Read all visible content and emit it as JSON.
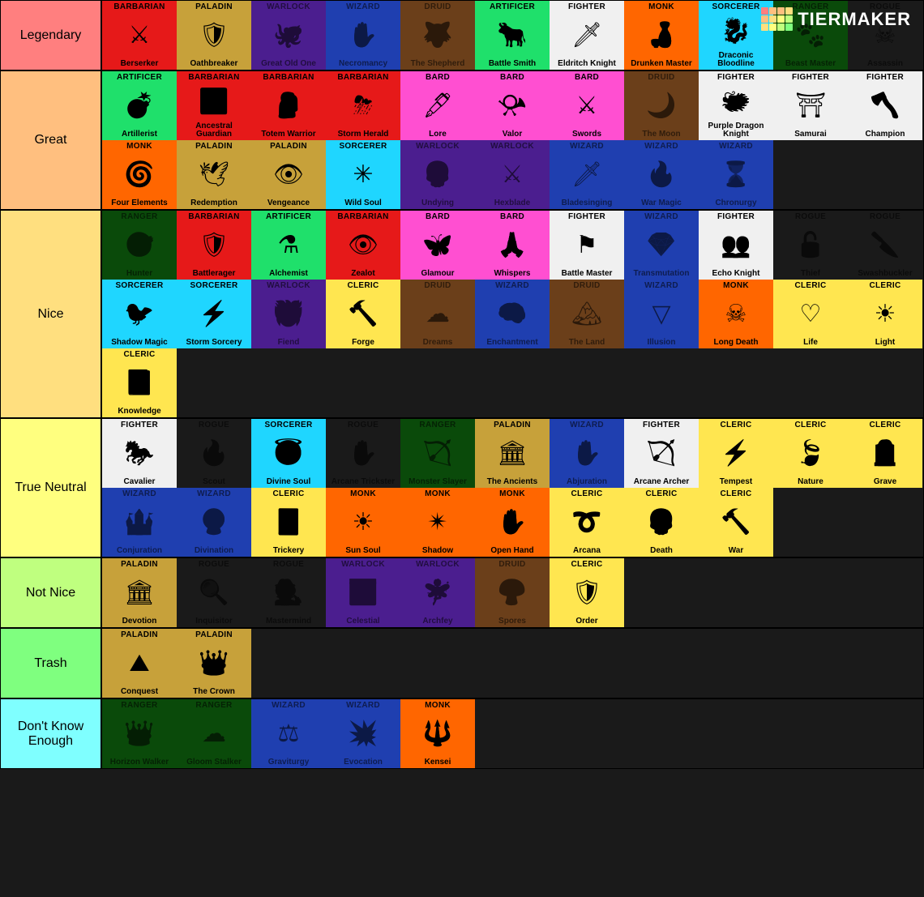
{
  "brand": "TIERMAKER",
  "logo_colors": [
    "#ff7f7f",
    "#ffbf7f",
    "#ffbf7f",
    "#ffdf7f",
    "#ffbf7f",
    "#ffdf7f",
    "#ffff7f",
    "#bfff7f",
    "#ffdf7f",
    "#ffff7f",
    "#bfff7f",
    "#7fff7f"
  ],
  "class_colors": {
    "BARBARIAN": "#e61919",
    "PALADIN": "#c7a13a",
    "WARLOCK": "#4b1e8f",
    "WIZARD": "#1f3fb0",
    "DRUID": "#6b3f1a",
    "ARTIFICER": "#1fe06b",
    "FIGHTER": "#f0f0f0",
    "MONK": "#ff6600",
    "SORCERER": "#1fd6ff",
    "RANGER": "#0a4a0a",
    "ROGUE": "#1a1a1a",
    "BARD": "#ff4fd1",
    "CLERIC": "#ffe650"
  },
  "dark_text_classes": [
    "ROGUE",
    "WARLOCK",
    "WIZARD",
    "DRUID",
    "RANGER"
  ],
  "tiers": [
    {
      "name": "Legendary",
      "color": "#ff7f7f",
      "items": [
        {
          "cls": "BARBARIAN",
          "sub": "Berserker",
          "icon": "⚔"
        },
        {
          "cls": "PALADIN",
          "sub": "Oathbreaker",
          "icon": "🛡"
        },
        {
          "cls": "WARLOCK",
          "sub": "Great Old One",
          "icon": "🐙"
        },
        {
          "cls": "WIZARD",
          "sub": "Necromancy",
          "icon": "✋"
        },
        {
          "cls": "DRUID",
          "sub": "The Shepherd",
          "icon": "🐺"
        },
        {
          "cls": "ARTIFICER",
          "sub": "Battle Smith",
          "icon": "🐂"
        },
        {
          "cls": "FIGHTER",
          "sub": "Eldritch Knight",
          "icon": "🗡"
        },
        {
          "cls": "MONK",
          "sub": "Drunken Master",
          "icon": "🍶"
        },
        {
          "cls": "SORCERER",
          "sub": "Draconic Bloodline",
          "icon": "🐉"
        },
        {
          "cls": "RANGER",
          "sub": "Beast Master",
          "icon": "🐾"
        },
        {
          "cls": "ROGUE",
          "sub": "Assassin",
          "icon": "☠"
        }
      ]
    },
    {
      "name": "Great",
      "color": "#ffbf7f",
      "items": [
        {
          "cls": "ARTIFICER",
          "sub": "Artillerist",
          "icon": "💣"
        },
        {
          "cls": "BARBARIAN",
          "sub": "Ancestral Guardian",
          "icon": "👪"
        },
        {
          "cls": "BARBARIAN",
          "sub": "Totem Warrior",
          "icon": "🗿"
        },
        {
          "cls": "BARBARIAN",
          "sub": "Storm Herald",
          "icon": "⛈"
        },
        {
          "cls": "BARD",
          "sub": "Lore",
          "icon": "🖋"
        },
        {
          "cls": "BARD",
          "sub": "Valor",
          "icon": "📯"
        },
        {
          "cls": "BARD",
          "sub": "Swords",
          "icon": "⚔"
        },
        {
          "cls": "DRUID",
          "sub": "The Moon",
          "icon": "🌙"
        },
        {
          "cls": "FIGHTER",
          "sub": "Purple Dragon Knight",
          "icon": "🐲"
        },
        {
          "cls": "FIGHTER",
          "sub": "Samurai",
          "icon": "⛩"
        },
        {
          "cls": "FIGHTER",
          "sub": "Champion",
          "icon": "🪓"
        },
        {
          "cls": "MONK",
          "sub": "Four Elements",
          "icon": "🌀"
        },
        {
          "cls": "PALADIN",
          "sub": "Redemption",
          "icon": "🕊"
        },
        {
          "cls": "PALADIN",
          "sub": "Vengeance",
          "icon": "👁"
        },
        {
          "cls": "SORCERER",
          "sub": "Wild Soul",
          "icon": "✳"
        },
        {
          "cls": "WARLOCK",
          "sub": "Undying",
          "icon": "💀"
        },
        {
          "cls": "WARLOCK",
          "sub": "Hexblade",
          "icon": "⚔"
        },
        {
          "cls": "WIZARD",
          "sub": "Bladesinging",
          "icon": "🗡"
        },
        {
          "cls": "WIZARD",
          "sub": "War Magic",
          "icon": "🔥"
        },
        {
          "cls": "WIZARD",
          "sub": "Chronurgy",
          "icon": "⌛"
        }
      ]
    },
    {
      "name": "Nice",
      "color": "#ffdf7f",
      "items": [
        {
          "cls": "RANGER",
          "sub": "Hunter",
          "icon": "🎯"
        },
        {
          "cls": "BARBARIAN",
          "sub": "Battlerager",
          "icon": "🛡"
        },
        {
          "cls": "ARTIFICER",
          "sub": "Alchemist",
          "icon": "⚗"
        },
        {
          "cls": "BARBARIAN",
          "sub": "Zealot",
          "icon": "👁"
        },
        {
          "cls": "BARD",
          "sub": "Glamour",
          "icon": "🦋"
        },
        {
          "cls": "BARD",
          "sub": "Whispers",
          "icon": "🙏"
        },
        {
          "cls": "FIGHTER",
          "sub": "Battle Master",
          "icon": "⚑"
        },
        {
          "cls": "WIZARD",
          "sub": "Transmutation",
          "icon": "💎"
        },
        {
          "cls": "FIGHTER",
          "sub": "Echo Knight",
          "icon": "👥"
        },
        {
          "cls": "ROGUE",
          "sub": "Thief",
          "icon": "🔓"
        },
        {
          "cls": "ROGUE",
          "sub": "Swashbuckler",
          "icon": "🔪"
        },
        {
          "cls": "SORCERER",
          "sub": "Shadow Magic",
          "icon": "🐦"
        },
        {
          "cls": "SORCERER",
          "sub": "Storm Sorcery",
          "icon": "⚡"
        },
        {
          "cls": "WARLOCK",
          "sub": "Fiend",
          "icon": "👹"
        },
        {
          "cls": "CLERIC",
          "sub": "Forge",
          "icon": "🔨"
        },
        {
          "cls": "DRUID",
          "sub": "Dreams",
          "icon": "☁"
        },
        {
          "cls": "WIZARD",
          "sub": "Enchantment",
          "icon": "🧠"
        },
        {
          "cls": "DRUID",
          "sub": "The Land",
          "icon": "🏔"
        },
        {
          "cls": "WIZARD",
          "sub": "Illusion",
          "icon": "▽"
        },
        {
          "cls": "MONK",
          "sub": "Long Death",
          "icon": "☠"
        },
        {
          "cls": "CLERIC",
          "sub": "Life",
          "icon": "♡"
        },
        {
          "cls": "CLERIC",
          "sub": "Light",
          "icon": "☀"
        },
        {
          "cls": "CLERIC",
          "sub": "Knowledge",
          "icon": "📕"
        }
      ]
    },
    {
      "name": "True Neutral",
      "color": "#ffff7f",
      "items": [
        {
          "cls": "FIGHTER",
          "sub": "Cavalier",
          "icon": "🐎"
        },
        {
          "cls": "ROGUE",
          "sub": "Scout",
          "icon": "🔥"
        },
        {
          "cls": "SORCERER",
          "sub": "Divine Soul",
          "icon": "😇"
        },
        {
          "cls": "ROGUE",
          "sub": "Arcane Trickster",
          "icon": "✋"
        },
        {
          "cls": "RANGER",
          "sub": "Monster Slayer",
          "icon": "🏹"
        },
        {
          "cls": "PALADIN",
          "sub": "The Ancients",
          "icon": "🏛"
        },
        {
          "cls": "WIZARD",
          "sub": "Abjuration",
          "icon": "✋"
        },
        {
          "cls": "FIGHTER",
          "sub": "Arcane Archer",
          "icon": "🏹"
        },
        {
          "cls": "CLERIC",
          "sub": "Tempest",
          "icon": "⚡"
        },
        {
          "cls": "CLERIC",
          "sub": "Nature",
          "icon": "🍃"
        },
        {
          "cls": "CLERIC",
          "sub": "Grave",
          "icon": "🪦"
        },
        {
          "cls": "WIZARD",
          "sub": "Conjuration",
          "icon": "🏰"
        },
        {
          "cls": "WIZARD",
          "sub": "Divination",
          "icon": "🔮"
        },
        {
          "cls": "CLERIC",
          "sub": "Trickery",
          "icon": "🃏"
        },
        {
          "cls": "MONK",
          "sub": "Sun Soul",
          "icon": "☀"
        },
        {
          "cls": "MONK",
          "sub": "Shadow",
          "icon": "✴"
        },
        {
          "cls": "MONK",
          "sub": "Open Hand",
          "icon": "✋"
        },
        {
          "cls": "CLERIC",
          "sub": "Arcana",
          "icon": "➰"
        },
        {
          "cls": "CLERIC",
          "sub": "Death",
          "icon": "💀"
        },
        {
          "cls": "CLERIC",
          "sub": "War",
          "icon": "🔨"
        }
      ]
    },
    {
      "name": "Not Nice",
      "color": "#bfff7f",
      "items": [
        {
          "cls": "PALADIN",
          "sub": "Devotion",
          "icon": "🏛"
        },
        {
          "cls": "ROGUE",
          "sub": "Inquisitor",
          "icon": "🔍"
        },
        {
          "cls": "ROGUE",
          "sub": "Mastermind",
          "icon": "🕵"
        },
        {
          "cls": "WARLOCK",
          "sub": "Celestial",
          "icon": "🎹"
        },
        {
          "cls": "WARLOCK",
          "sub": "Archfey",
          "icon": "🧚"
        },
        {
          "cls": "DRUID",
          "sub": "Spores",
          "icon": "🍄"
        },
        {
          "cls": "CLERIC",
          "sub": "Order",
          "icon": "🛡"
        }
      ]
    },
    {
      "name": "Trash",
      "color": "#7fff7f",
      "items": [
        {
          "cls": "PALADIN",
          "sub": "Conquest",
          "icon": "⛰"
        },
        {
          "cls": "PALADIN",
          "sub": "The Crown",
          "icon": "👑"
        }
      ]
    },
    {
      "name": "Don't Know Enough",
      "color": "#7fffff",
      "items": [
        {
          "cls": "RANGER",
          "sub": "Horizon Walker",
          "icon": "👑"
        },
        {
          "cls": "RANGER",
          "sub": "Gloom Stalker",
          "icon": "☁"
        },
        {
          "cls": "WIZARD",
          "sub": "Graviturgy",
          "icon": "⚖"
        },
        {
          "cls": "WIZARD",
          "sub": "Evocation",
          "icon": "💥"
        },
        {
          "cls": "MONK",
          "sub": "Kensei",
          "icon": "🔱"
        }
      ]
    }
  ]
}
